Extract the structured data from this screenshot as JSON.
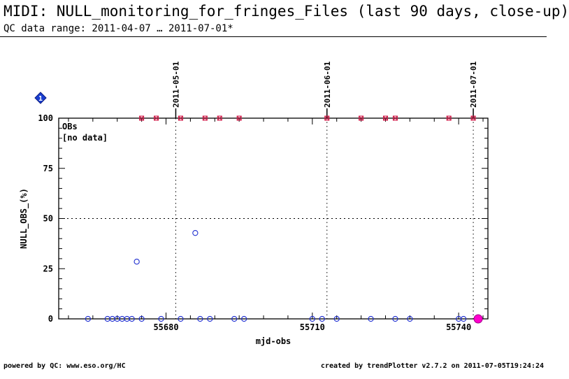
{
  "header": {
    "title": "MIDI: NULL_monitoring_for_fringes_Files (last 90 days, close-up)",
    "subtitle": "QC data range: 2011-04-07 … 2011-07-01*"
  },
  "footer": {
    "left": "powered by QC: www.eso.org/HC",
    "right": "created by trendPlotter v2.7.2 on 2011-07-05T19:24:24"
  },
  "chart_data": {
    "type": "scatter",
    "xlabel": "mjd-obs",
    "ylabel": "NULL_OBS_(%)",
    "xlim": [
      55658,
      55746
    ],
    "ylim": [
      0,
      100
    ],
    "xticks": [
      55680,
      55710,
      55740
    ],
    "yticks": [
      0,
      25,
      50,
      75,
      100
    ],
    "hlines": [
      50
    ],
    "date_markers": [
      {
        "label": "2011-05-01",
        "x": 55682
      },
      {
        "label": "2011-06-01",
        "x": 55713
      },
      {
        "label": "2011-07-01",
        "x": 55743
      }
    ],
    "legend": {
      "title": "OBs",
      "note": "[no data]",
      "placement": "top-left"
    },
    "badge": {
      "text": "1",
      "color": "#1a3fd0"
    },
    "series": [
      {
        "marker": "open-circle",
        "color": "#1f2fd0",
        "points": [
          [
            55664,
            0
          ],
          [
            55668,
            0
          ],
          [
            55669,
            0
          ],
          [
            55670,
            0
          ],
          [
            55671,
            0
          ],
          [
            55672,
            0
          ],
          [
            55673,
            0
          ],
          [
            55674,
            28.5
          ],
          [
            55675,
            0
          ],
          [
            55679,
            0
          ],
          [
            55683,
            0
          ],
          [
            55686,
            42.8
          ],
          [
            55687,
            0
          ],
          [
            55689,
            0
          ],
          [
            55694,
            0
          ],
          [
            55696,
            0
          ],
          [
            55710,
            0
          ],
          [
            55712,
            0
          ],
          [
            55715,
            0
          ],
          [
            55722,
            0
          ],
          [
            55727,
            0
          ],
          [
            55730,
            0
          ],
          [
            55740,
            0
          ],
          [
            55741,
            0
          ],
          [
            55744,
            0
          ]
        ]
      },
      {
        "marker": "cross-box",
        "color": "#d01040",
        "points": [
          [
            55675,
            100
          ],
          [
            55678,
            100
          ],
          [
            55683,
            100
          ],
          [
            55688,
            100
          ],
          [
            55691,
            100
          ],
          [
            55695,
            100
          ],
          [
            55713,
            100
          ],
          [
            55720,
            100
          ],
          [
            55725,
            100
          ],
          [
            55727,
            100
          ],
          [
            55738,
            100
          ],
          [
            55743,
            100
          ]
        ]
      },
      {
        "marker": "filled-circle",
        "color": "#ff00cc",
        "points": [
          [
            55744,
            0
          ]
        ]
      }
    ]
  }
}
